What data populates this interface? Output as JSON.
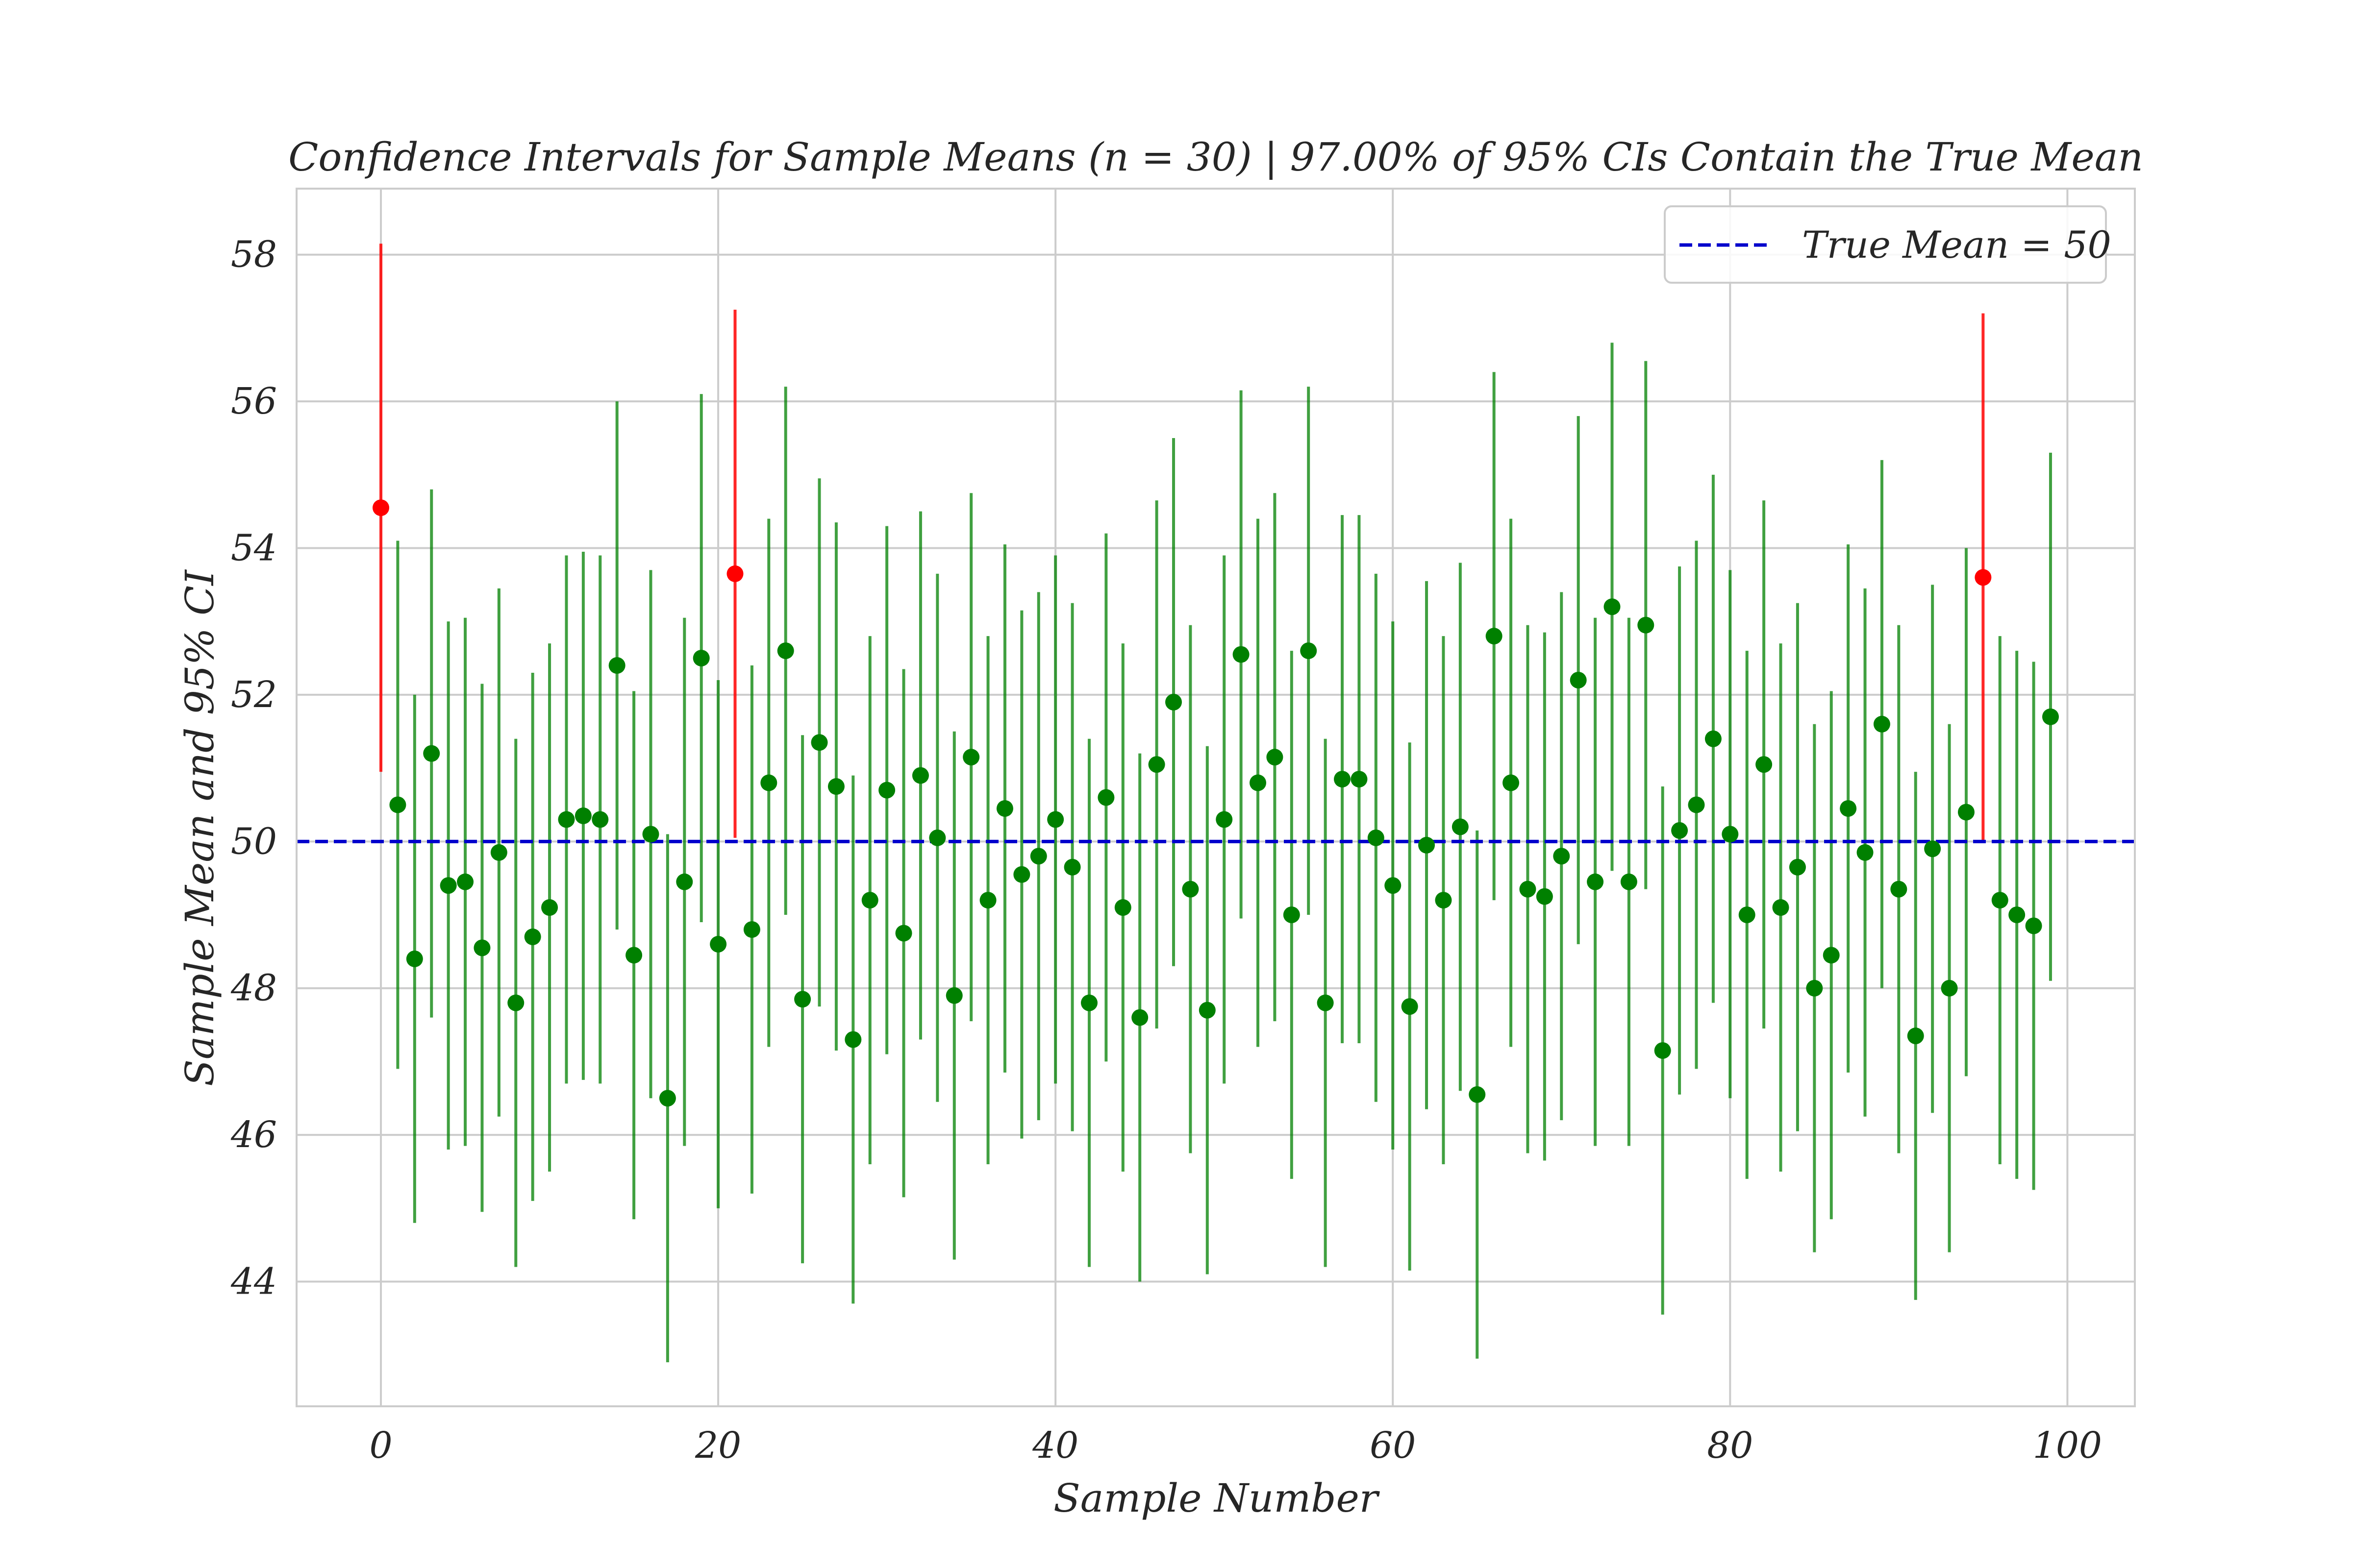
{
  "chart_data": {
    "type": "errorbar-scatter",
    "title": "Confidence Intervals for Sample Means (n = 30) | 97.00% of 95% CIs Contain the True Mean",
    "xlabel": "Sample Number",
    "ylabel": "Sample Mean and 95% CI",
    "xlim": [
      -5,
      104
    ],
    "ylim": [
      42.3,
      58.9
    ],
    "xticks": [
      0,
      20,
      40,
      60,
      80,
      100
    ],
    "yticks": [
      44,
      46,
      48,
      50,
      52,
      54,
      56,
      58
    ],
    "grid": true,
    "true_mean": 50,
    "legend": {
      "position": "top-right",
      "label": "True Mean = 50"
    },
    "colors": {
      "contains": "#008000",
      "misses": "#ff0000",
      "true_mean_line": "#0000cc",
      "grid": "#cccccc",
      "spine": "#cccccc"
    },
    "x": [
      0,
      1,
      2,
      3,
      4,
      5,
      6,
      7,
      8,
      9,
      10,
      11,
      12,
      13,
      14,
      15,
      16,
      17,
      18,
      19,
      20,
      21,
      22,
      23,
      24,
      25,
      26,
      27,
      28,
      29,
      30,
      31,
      32,
      33,
      34,
      35,
      36,
      37,
      38,
      39,
      40,
      41,
      42,
      43,
      44,
      45,
      46,
      47,
      48,
      49,
      50,
      51,
      52,
      53,
      54,
      55,
      56,
      57,
      58,
      59,
      60,
      61,
      62,
      63,
      64,
      65,
      66,
      67,
      68,
      69,
      70,
      71,
      72,
      73,
      74,
      75,
      76,
      77,
      78,
      79,
      80,
      81,
      82,
      83,
      84,
      85,
      86,
      87,
      88,
      89,
      90,
      91,
      92,
      93,
      94,
      95,
      96,
      97,
      98,
      99
    ],
    "means": [
      54.55,
      50.5,
      48.4,
      51.2,
      49.4,
      49.45,
      48.55,
      49.85,
      47.8,
      48.7,
      49.1,
      50.3,
      50.35,
      50.3,
      52.4,
      48.45,
      50.1,
      46.5,
      49.45,
      52.5,
      48.6,
      53.65,
      48.8,
      50.8,
      52.6,
      47.85,
      51.35,
      50.75,
      47.3,
      49.2,
      50.7,
      48.75,
      50.9,
      50.05,
      47.9,
      51.15,
      49.2,
      50.45,
      49.55,
      49.8,
      50.3,
      49.65,
      47.8,
      50.6,
      49.1,
      47.6,
      51.05,
      51.9,
      49.35,
      47.7,
      50.3,
      52.55,
      50.8,
      51.15,
      49.0,
      52.6,
      47.8,
      50.85,
      50.85,
      50.05,
      49.4,
      47.75,
      49.95,
      49.2,
      50.2,
      46.55,
      52.8,
      50.8,
      49.35,
      49.25,
      49.8,
      52.2,
      49.45,
      53.2,
      49.45,
      52.95,
      47.15,
      50.15,
      50.5,
      51.4,
      50.1,
      49.0,
      51.05,
      49.1,
      49.65,
      48.0,
      48.45,
      50.45,
      49.85,
      51.6,
      49.35,
      47.35,
      49.9,
      48.0,
      50.4,
      53.6,
      49.2,
      49.0,
      48.85,
      51.7
    ],
    "lower": [
      50.95,
      46.9,
      44.8,
      47.6,
      45.8,
      45.85,
      44.95,
      46.25,
      44.2,
      45.1,
      45.5,
      46.7,
      46.75,
      46.7,
      48.8,
      44.85,
      46.5,
      42.9,
      45.85,
      48.9,
      45.0,
      50.05,
      45.2,
      47.2,
      49.0,
      44.25,
      47.75,
      47.15,
      43.7,
      45.6,
      47.1,
      45.15,
      47.3,
      46.45,
      44.3,
      47.55,
      45.6,
      46.85,
      45.95,
      46.2,
      46.7,
      46.05,
      44.2,
      47.0,
      45.5,
      44.0,
      47.45,
      48.3,
      45.75,
      44.1,
      46.7,
      48.95,
      47.2,
      47.55,
      45.4,
      49.0,
      44.2,
      47.25,
      47.25,
      46.45,
      45.8,
      44.15,
      46.35,
      45.6,
      46.6,
      42.95,
      49.2,
      47.2,
      45.75,
      45.65,
      46.2,
      48.6,
      45.85,
      49.6,
      45.85,
      49.35,
      43.55,
      46.55,
      46.9,
      47.8,
      46.5,
      45.4,
      47.45,
      45.5,
      46.05,
      44.4,
      44.85,
      46.85,
      46.25,
      48.0,
      45.75,
      43.75,
      46.3,
      44.4,
      46.8,
      50.0,
      45.6,
      45.4,
      45.25,
      48.1
    ],
    "upper": [
      58.15,
      54.1,
      52.0,
      54.8,
      53.0,
      53.05,
      52.15,
      53.45,
      51.4,
      52.3,
      52.7,
      53.9,
      53.95,
      53.9,
      56.0,
      52.05,
      53.7,
      50.1,
      53.05,
      56.1,
      52.2,
      57.25,
      52.4,
      54.4,
      56.2,
      51.45,
      54.95,
      54.35,
      50.9,
      52.8,
      54.3,
      52.35,
      54.5,
      53.65,
      51.5,
      54.75,
      52.8,
      54.05,
      53.15,
      53.4,
      53.9,
      53.25,
      51.4,
      54.2,
      52.7,
      51.2,
      54.65,
      55.5,
      52.95,
      51.3,
      53.9,
      56.15,
      54.4,
      54.75,
      52.6,
      56.2,
      51.4,
      54.45,
      54.45,
      53.65,
      53.0,
      51.35,
      53.55,
      52.8,
      53.8,
      50.15,
      56.4,
      54.4,
      52.95,
      52.85,
      53.4,
      55.8,
      53.05,
      56.8,
      53.05,
      56.55,
      50.75,
      53.75,
      54.1,
      55.0,
      53.7,
      52.6,
      54.65,
      52.7,
      53.25,
      51.6,
      52.05,
      54.05,
      53.45,
      55.2,
      52.95,
      50.95,
      53.5,
      51.6,
      54.0,
      57.2,
      52.8,
      52.6,
      52.45,
      55.3
    ]
  }
}
